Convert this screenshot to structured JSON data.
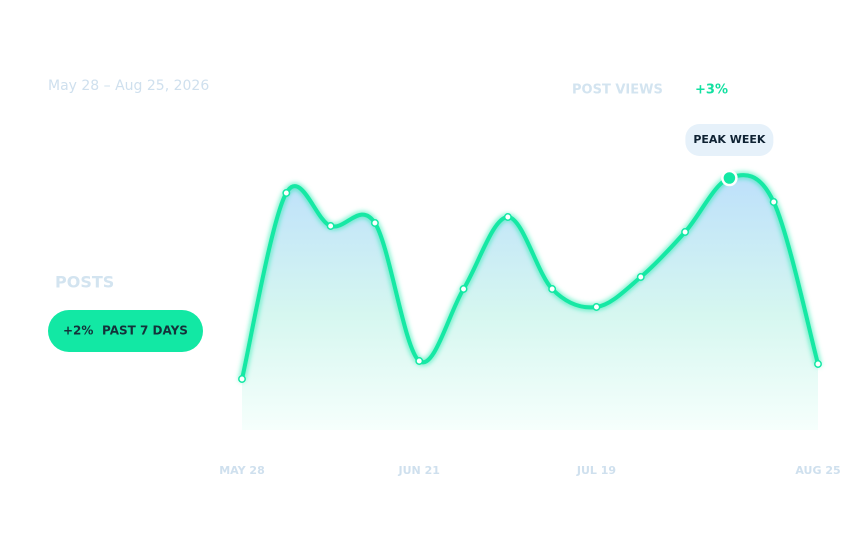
{
  "chart_data": {
    "type": "line",
    "subtitle": "May 28 – Aug 25, 2026",
    "metric_label": "POST VIEWS",
    "metric_change": "+3%",
    "side_label": "POSTS",
    "badge_change": "+2%",
    "badge_period": "PAST 7 DAYS",
    "annotation": {
      "text": "PEAK WEEK",
      "index": 11
    },
    "categories": [
      "MAY 28",
      null,
      null,
      null,
      "JUN 21",
      null,
      null,
      null,
      "JUL 19",
      null,
      null,
      null,
      null,
      "AUG 25"
    ],
    "series": [
      {
        "name": "Post views",
        "color": "#12e8a4",
        "values": [
          17,
          79,
          68,
          69,
          23,
          47,
          71,
          47,
          41,
          51,
          66,
          84,
          76,
          22
        ]
      }
    ],
    "ylim": [
      0,
      100
    ]
  }
}
